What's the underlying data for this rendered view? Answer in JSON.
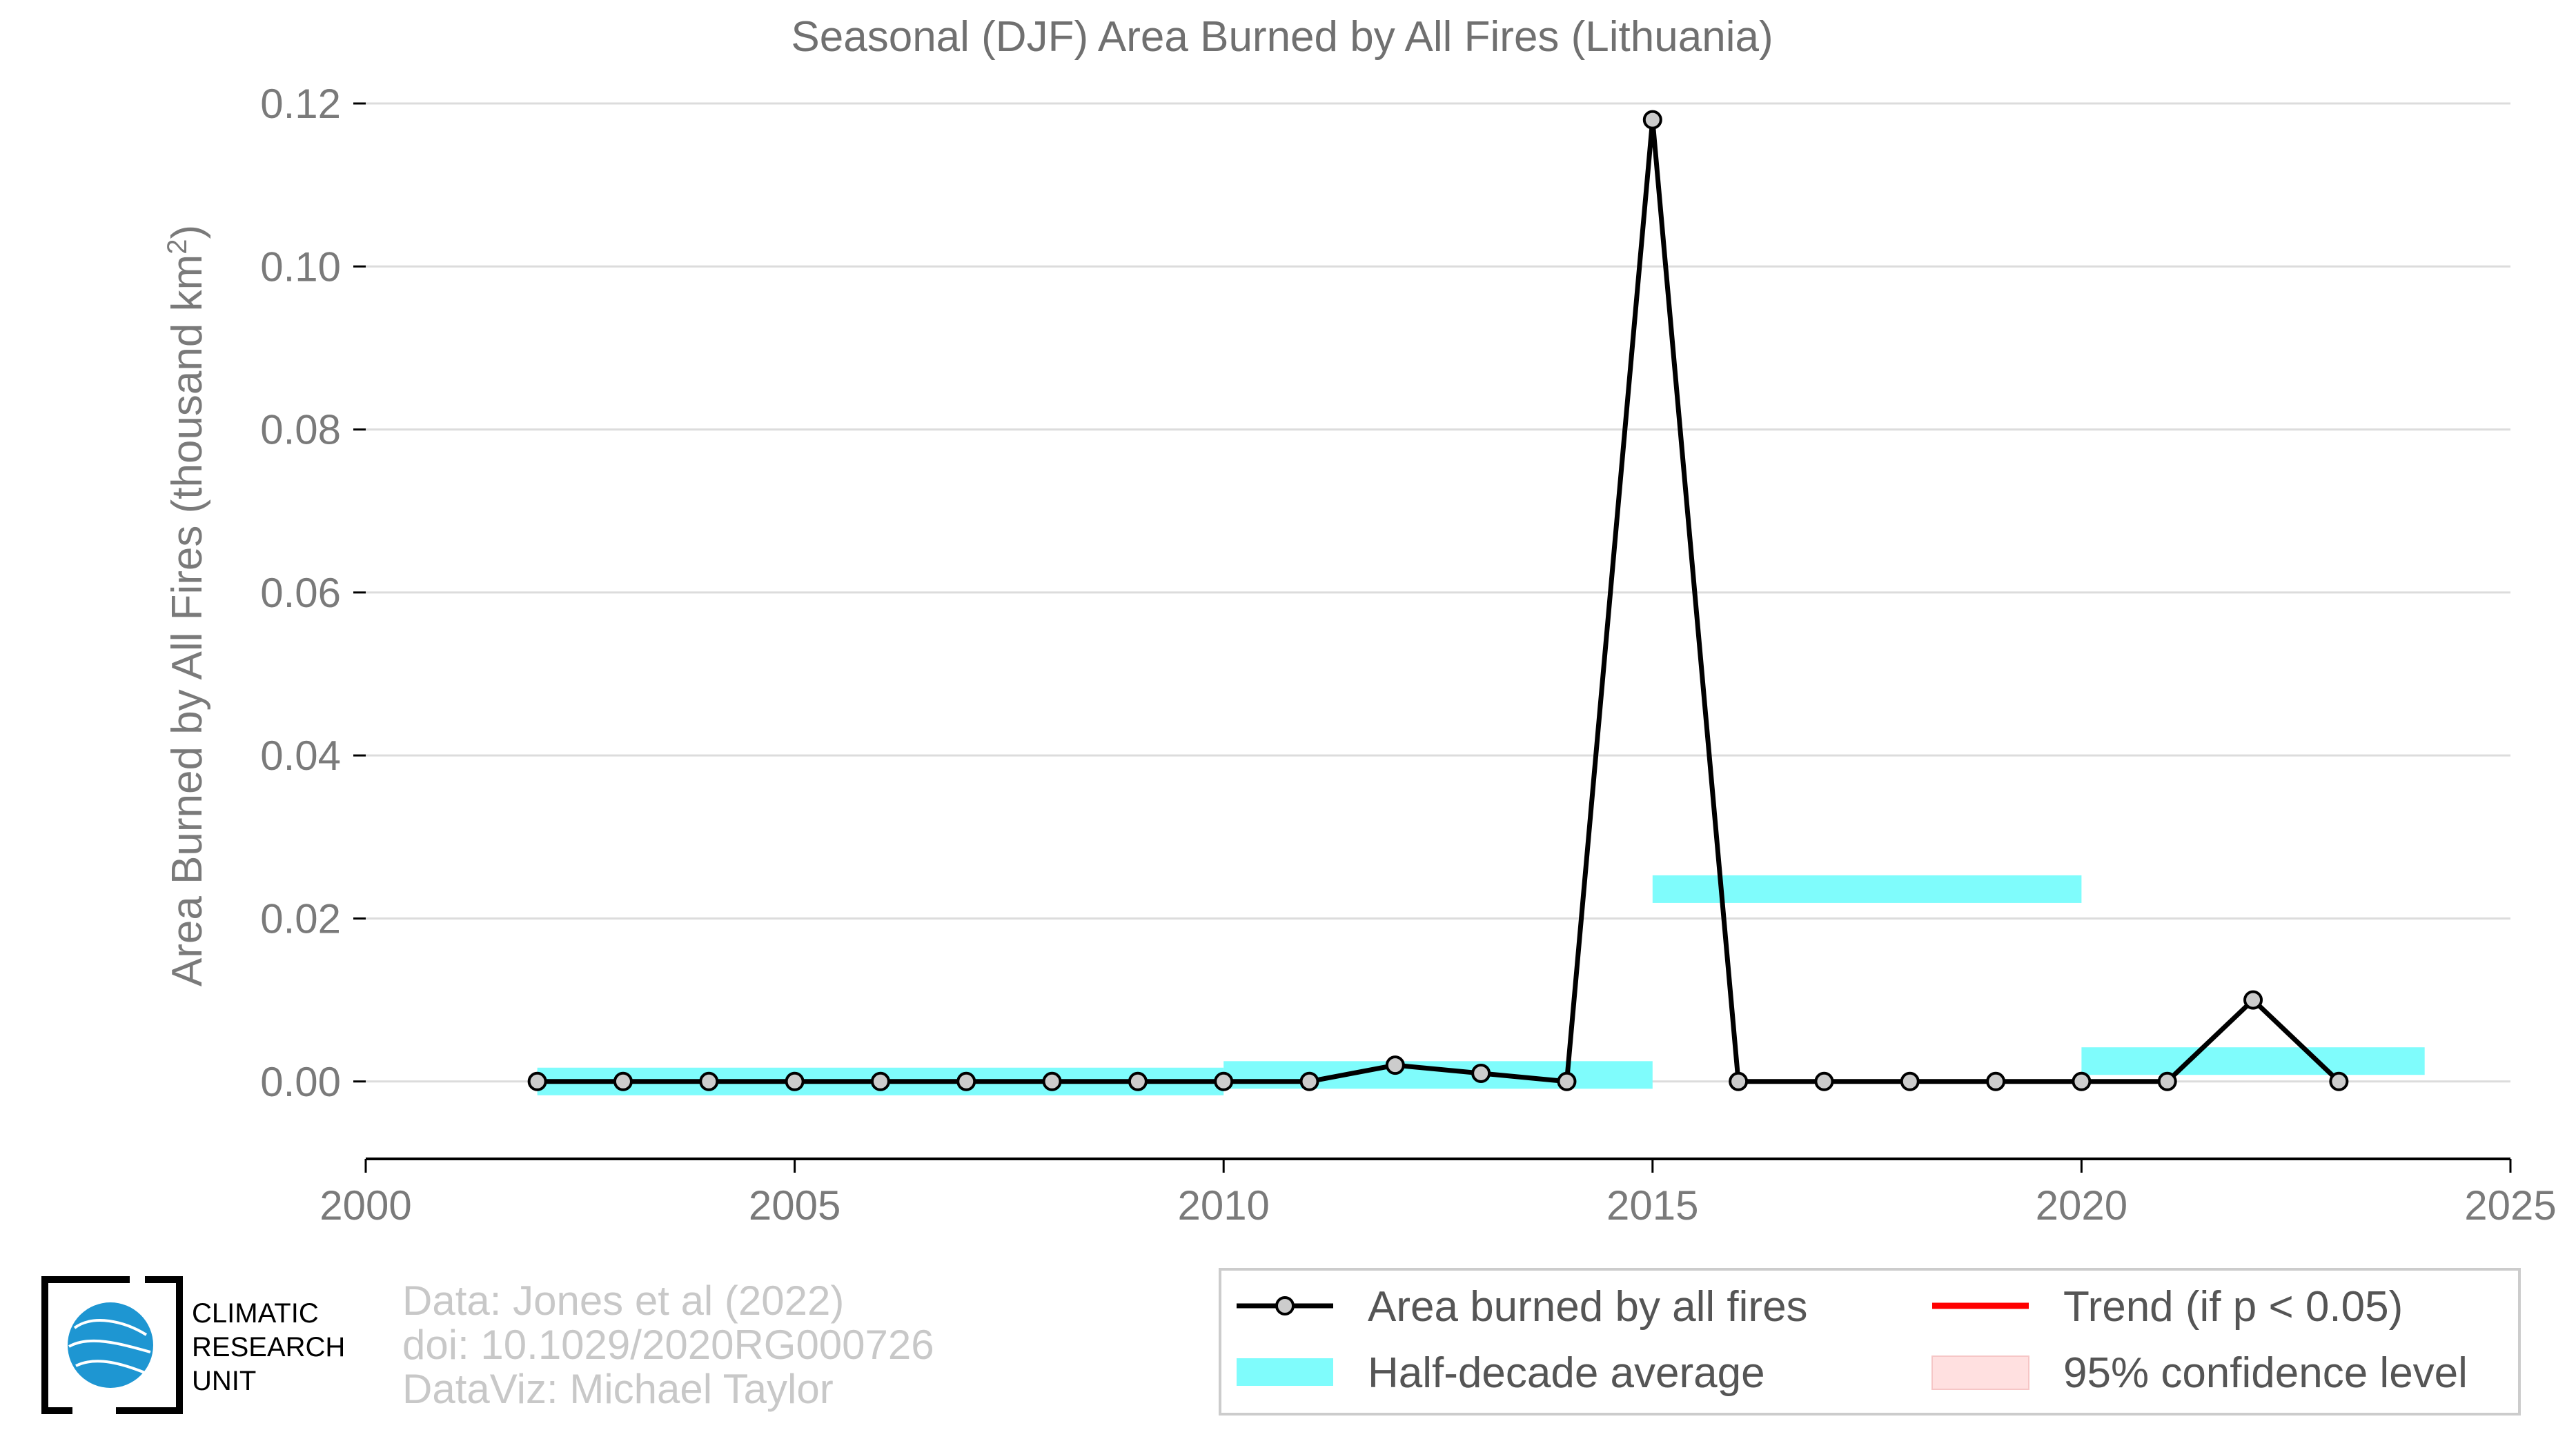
{
  "chart_data": {
    "type": "line",
    "title": "Seasonal (DJF) Area Burned by All Fires (Lithuania)",
    "ylabel": "Area Burned by All Fires (thousand km",
    "ylabel_sup": "2",
    "ylabel_close": ")",
    "xlabel": "",
    "xlim": [
      2000,
      2025
    ],
    "ylim": [
      -0.0095,
      0.12
    ],
    "x_ticks": [
      "2000",
      "2005",
      "2010",
      "2015",
      "2020",
      "2025"
    ],
    "y_ticks": [
      "0.00",
      "0.02",
      "0.04",
      "0.06",
      "0.08",
      "0.10",
      "0.12"
    ],
    "grid": true,
    "series": [
      {
        "name": "Area burned by all fires",
        "color": "#000000",
        "marker_fill": "#cccccc",
        "x": [
          2002,
          2003,
          2004,
          2005,
          2006,
          2007,
          2008,
          2009,
          2010,
          2011,
          2012,
          2013,
          2014,
          2015,
          2016,
          2017,
          2018,
          2019,
          2020,
          2021,
          2022,
          2023
        ],
        "y": [
          0.0,
          0.0,
          0.0,
          0.0,
          0.0,
          0.0,
          0.0,
          0.0,
          0.0,
          0.0,
          0.002,
          0.001,
          0.0,
          0.118,
          0.0,
          0.0,
          0.0,
          0.0,
          0.0,
          0.0,
          0.01,
          0.0
        ]
      }
    ],
    "half_decade_average": {
      "name": "Half-decade average",
      "color": "#7ffcfc",
      "segments": [
        {
          "x0": 2002,
          "x1": 2010,
          "y": 0.0
        },
        {
          "x0": 2010,
          "x1": 2015,
          "y": 0.0008
        },
        {
          "x0": 2015,
          "x1": 2020,
          "y": 0.0236
        },
        {
          "x0": 2020,
          "x1": 2024,
          "y": 0.0025
        }
      ]
    },
    "legend": {
      "placement": "bottom-right",
      "items": [
        {
          "label": "Area burned by all fires",
          "kind": "line-marker",
          "color": "#000000"
        },
        {
          "label": "Trend (if p < 0.05)",
          "kind": "line",
          "color": "#ff0000"
        },
        {
          "label": "Half-decade average",
          "kind": "band",
          "color": "#7ffcfc"
        },
        {
          "label": "95% confidence level",
          "kind": "fill",
          "color": "#ffe0e0"
        }
      ]
    }
  },
  "credits": {
    "line1": "Data: Jones et al (2022)",
    "line2": "doi: 10.1029/2020RG000726",
    "line3": "DataViz: Michael Taylor"
  },
  "logo": {
    "text1": "CLIMATIC",
    "text2": "RESEARCH",
    "text3": "UNIT",
    "globe_color": "#1e96d2"
  }
}
